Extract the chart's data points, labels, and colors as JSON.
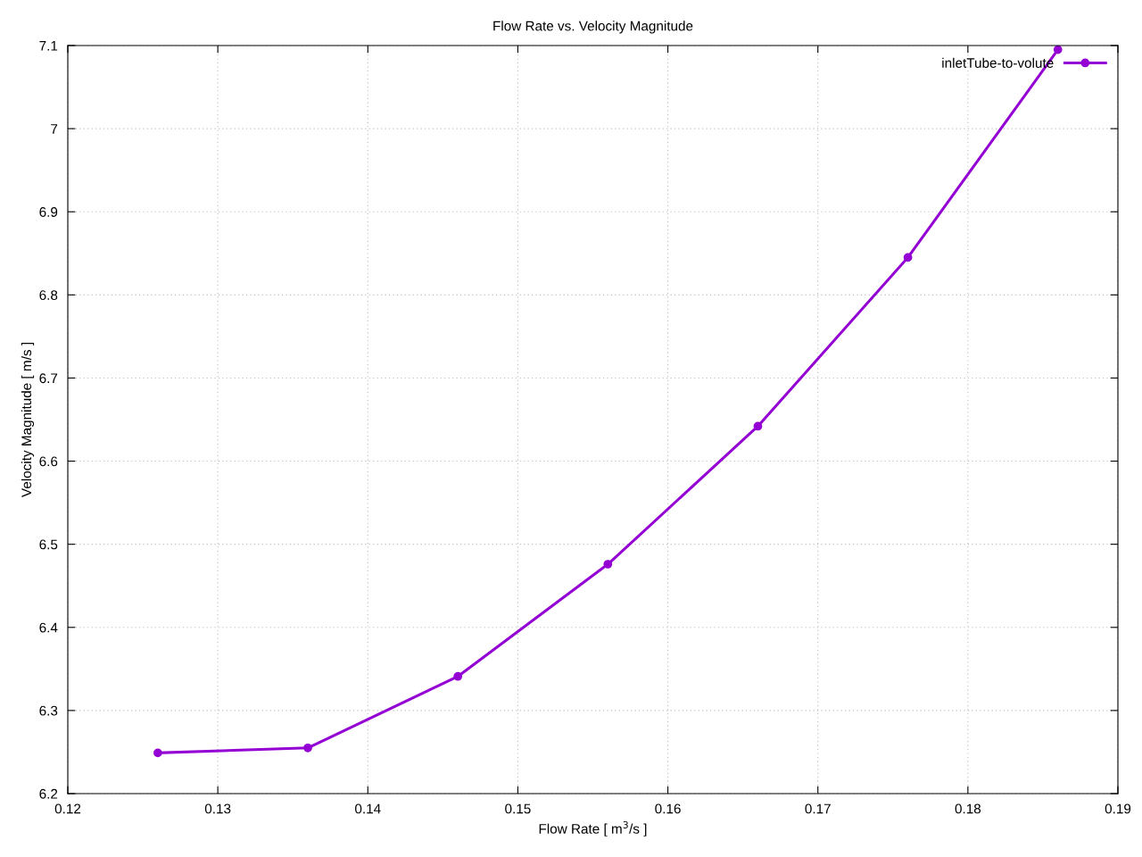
{
  "chart_data": {
    "type": "line",
    "title": "Flow Rate vs. Velocity Magnitude",
    "xlabel": "Flow Rate [ m$^{3}$/s ]",
    "ylabel": "Velocity Magnitude [ m/s ]",
    "x": [
      0.126,
      0.136,
      0.146,
      0.156,
      0.166,
      0.176,
      0.186
    ],
    "series": [
      {
        "name": "inletTube-to-volute",
        "color": "#9400d3",
        "values": [
          6.249,
          6.255,
          6.341,
          6.476,
          6.642,
          6.845,
          7.095
        ]
      }
    ],
    "xlim": [
      0.12,
      0.19
    ],
    "xticks": [
      0.12,
      0.13,
      0.14,
      0.15,
      0.16,
      0.17,
      0.18,
      0.19
    ],
    "ylim": [
      6.2,
      7.1
    ],
    "yticks": [
      6.2,
      6.3,
      6.4,
      6.5,
      6.6,
      6.7,
      6.8,
      6.9,
      7,
      7.1
    ],
    "grid": true,
    "legend": "top right",
    "marker": "circle",
    "line_style": "solid"
  }
}
